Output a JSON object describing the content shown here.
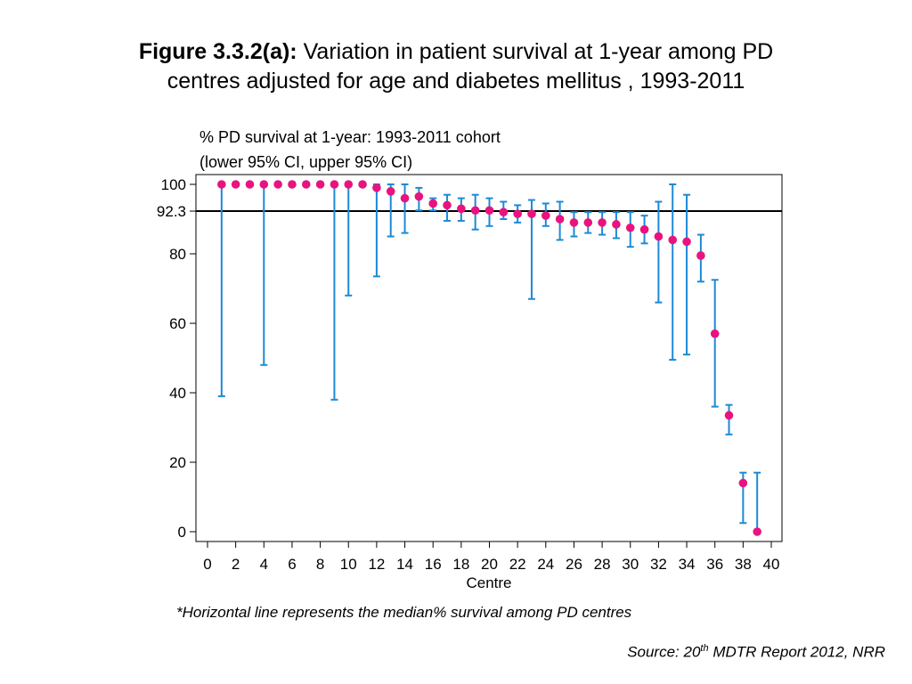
{
  "figure": {
    "label": "Figure 3.3.2(a):",
    "title_line1": "Variation in patient survival at 1-year among PD",
    "title_line2": "centres adjusted for age and diabetes mellitus , 1993-2011"
  },
  "footnote": "*Horizontal line represents the median% survival among PD centres",
  "source": {
    "prefix": "Source: 20",
    "sup": "th",
    "suffix": " MDTR Report 2012, NRR"
  },
  "colors": {
    "point": "#e8137f",
    "ci": "#1c8ad6",
    "median_line": "#000000",
    "axis": "#000000"
  },
  "chart_data": {
    "type": "scatter",
    "title": "% PD survival at 1-year: 1993-2011 cohort",
    "subtitle": "(lower 95% CI, upper 95% CI)",
    "xlabel": "Centre",
    "ylabel": "",
    "xlim": [
      0,
      40
    ],
    "ylim": [
      0,
      100
    ],
    "x_ticks": [
      0,
      2,
      4,
      6,
      8,
      10,
      12,
      14,
      16,
      18,
      20,
      22,
      24,
      26,
      28,
      30,
      32,
      34,
      36,
      38,
      40
    ],
    "y_ticks": [
      0,
      20,
      40,
      60,
      80,
      92.3,
      100
    ],
    "y_tick_labels": [
      "0",
      "20",
      "40",
      "60",
      "80",
      "92.3",
      "100"
    ],
    "median": 92.3,
    "grid": false,
    "series": [
      {
        "points": [
          {
            "x": 1,
            "y": 100,
            "lo": 39,
            "hi": 100
          },
          {
            "x": 2,
            "y": 100
          },
          {
            "x": 3,
            "y": 100
          },
          {
            "x": 4,
            "y": 100,
            "lo": 48,
            "hi": 100
          },
          {
            "x": 5,
            "y": 100
          },
          {
            "x": 6,
            "y": 100
          },
          {
            "x": 7,
            "y": 100
          },
          {
            "x": 8,
            "y": 100
          },
          {
            "x": 9,
            "y": 100,
            "lo": 38,
            "hi": 100
          },
          {
            "x": 10,
            "y": 100,
            "lo": 68,
            "hi": 100
          },
          {
            "x": 11,
            "y": 100
          },
          {
            "x": 12,
            "y": 99,
            "lo": 73.5,
            "hi": 100
          },
          {
            "x": 13,
            "y": 98,
            "lo": 85,
            "hi": 100
          },
          {
            "x": 14,
            "y": 96,
            "lo": 86,
            "hi": 100
          },
          {
            "x": 15,
            "y": 96.5,
            "lo": 92.5,
            "hi": 99
          },
          {
            "x": 16,
            "y": 94.5,
            "lo": 92.5,
            "hi": 96
          },
          {
            "x": 17,
            "y": 94,
            "lo": 89.5,
            "hi": 97
          },
          {
            "x": 18,
            "y": 93,
            "lo": 89.5,
            "hi": 96
          },
          {
            "x": 19,
            "y": 92.5,
            "lo": 87,
            "hi": 97
          },
          {
            "x": 20,
            "y": 92.5,
            "lo": 88,
            "hi": 96
          },
          {
            "x": 21,
            "y": 92,
            "lo": 90,
            "hi": 95
          },
          {
            "x": 22,
            "y": 91.5,
            "lo": 89,
            "hi": 94
          },
          {
            "x": 23,
            "y": 91.5,
            "lo": 67,
            "hi": 95.5
          },
          {
            "x": 24,
            "y": 91,
            "lo": 88,
            "hi": 94.5
          },
          {
            "x": 25,
            "y": 90,
            "lo": 84,
            "hi": 95
          },
          {
            "x": 26,
            "y": 89,
            "lo": 85,
            "hi": 92
          },
          {
            "x": 27,
            "y": 89,
            "lo": 86,
            "hi": 92
          },
          {
            "x": 28,
            "y": 89,
            "lo": 85.5,
            "hi": 92
          },
          {
            "x": 29,
            "y": 88.5,
            "lo": 84.5,
            "hi": 92
          },
          {
            "x": 30,
            "y": 87.5,
            "lo": 82,
            "hi": 92
          },
          {
            "x": 31,
            "y": 87,
            "lo": 83,
            "hi": 91
          },
          {
            "x": 32,
            "y": 85,
            "lo": 66,
            "hi": 95
          },
          {
            "x": 33,
            "y": 84,
            "lo": 49.5,
            "hi": 100
          },
          {
            "x": 34,
            "y": 83.5,
            "lo": 51,
            "hi": 97
          },
          {
            "x": 35,
            "y": 79.5,
            "lo": 72,
            "hi": 85.5
          },
          {
            "x": 36,
            "y": 57,
            "lo": 36,
            "hi": 72.5
          },
          {
            "x": 37,
            "y": 33.5,
            "lo": 28,
            "hi": 36.5
          },
          {
            "x": 38,
            "y": 14,
            "lo": 2.5,
            "hi": 17
          },
          {
            "x": 39,
            "y": 0,
            "lo": 0,
            "hi": 17
          }
        ]
      }
    ]
  }
}
